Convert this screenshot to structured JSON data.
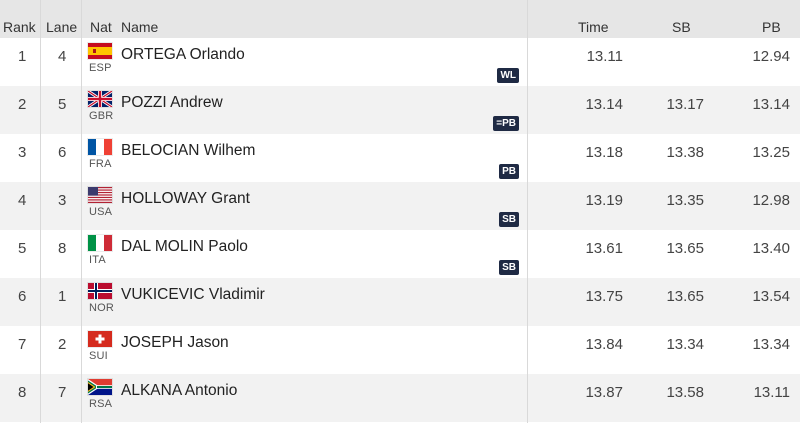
{
  "columns": {
    "rank": "Rank",
    "lane": "Lane",
    "nat": "Nat",
    "name": "Name",
    "time": "Time",
    "sb": "SB",
    "pb": "PB"
  },
  "colors": {
    "header_bg": "#e6e6e6",
    "row_alt_bg": "#f2f2f2",
    "badge_bg": "#1f2a44",
    "badge_text": "#ffffff"
  },
  "rows": [
    {
      "rank": "1",
      "lane": "4",
      "flag": "spain-flag-icon",
      "nat": "ESP",
      "name": "ORTEGA Orlando",
      "badge": "WL",
      "time": "13.11",
      "sb": "",
      "pb": "12.94"
    },
    {
      "rank": "2",
      "lane": "5",
      "flag": "uk-flag-icon",
      "nat": "GBR",
      "name": "POZZI Andrew",
      "badge": "=PB",
      "time": "13.14",
      "sb": "13.17",
      "pb": "13.14"
    },
    {
      "rank": "3",
      "lane": "6",
      "flag": "france-flag-icon",
      "nat": "FRA",
      "name": "BELOCIAN Wilhem",
      "badge": "PB",
      "time": "13.18",
      "sb": "13.38",
      "pb": "13.25"
    },
    {
      "rank": "4",
      "lane": "3",
      "flag": "usa-flag-icon",
      "nat": "USA",
      "name": "HOLLOWAY Grant",
      "badge": "SB",
      "time": "13.19",
      "sb": "13.35",
      "pb": "12.98"
    },
    {
      "rank": "5",
      "lane": "8",
      "flag": "italy-flag-icon",
      "nat": "ITA",
      "name": "DAL MOLIN Paolo",
      "badge": "SB",
      "time": "13.61",
      "sb": "13.65",
      "pb": "13.40"
    },
    {
      "rank": "6",
      "lane": "1",
      "flag": "norway-flag-icon",
      "nat": "NOR",
      "name": "VUKICEVIC Vladimir",
      "badge": "",
      "time": "13.75",
      "sb": "13.65",
      "pb": "13.54"
    },
    {
      "rank": "7",
      "lane": "2",
      "flag": "switzerland-flag-icon",
      "nat": "SUI",
      "name": "JOSEPH Jason",
      "badge": "",
      "time": "13.84",
      "sb": "13.34",
      "pb": "13.34"
    },
    {
      "rank": "8",
      "lane": "7",
      "flag": "south-africa-flag-icon",
      "nat": "RSA",
      "name": "ALKANA Antonio",
      "badge": "",
      "time": "13.87",
      "sb": "13.58",
      "pb": "13.11"
    }
  ]
}
